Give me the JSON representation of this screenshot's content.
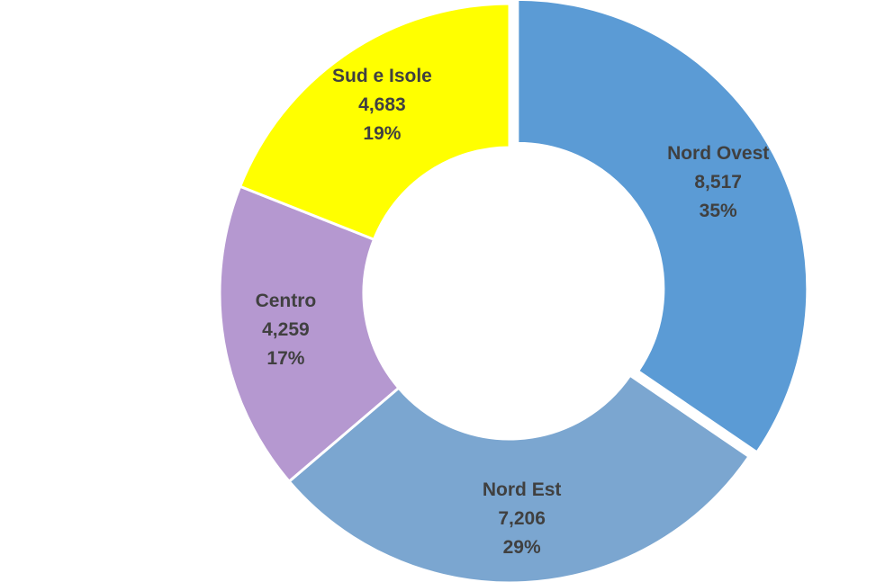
{
  "chart_data": {
    "type": "pie",
    "variant": "donut",
    "title": "",
    "slices": [
      {
        "label": "Nord Ovest",
        "value": 8517,
        "value_text": "8,517",
        "percent_text": "35%",
        "color": "#5B9BD5",
        "exploded": true
      },
      {
        "label": "Nord Est",
        "value": 7206,
        "value_text": "7,206",
        "percent_text": "29%",
        "color": "#7BA6D0",
        "exploded": false
      },
      {
        "label": "Centro",
        "value": 4259,
        "value_text": "4,259",
        "percent_text": "17%",
        "color": "#B598D0",
        "exploded": false
      },
      {
        "label": "Sud e Isole",
        "value": 4683,
        "value_text": "4,683",
        "percent_text": "19%",
        "color": "#FFFF00",
        "exploded": false
      }
    ],
    "legend": "none",
    "label_color": "#404040"
  }
}
